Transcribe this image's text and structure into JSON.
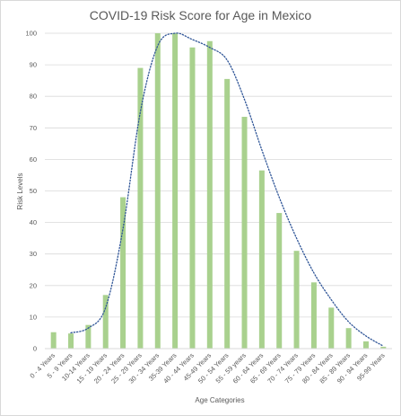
{
  "chart_data": {
    "type": "bar",
    "title": "COVID-19 Risk Score for Age in Mexico",
    "xlabel": "Age Categories",
    "ylabel": "Risk Levels",
    "ylim": [
      0,
      100
    ],
    "yticks": [
      0,
      10,
      20,
      30,
      40,
      50,
      60,
      70,
      80,
      90,
      100
    ],
    "grid": true,
    "legend": "none",
    "categories": [
      "0 - 4 Years",
      "5 - 9 Years",
      "10-14 Years",
      "15 - 19 Years",
      "20 - 24 Years",
      "25 - 29 Years",
      "30 - 34 Years",
      "35-39 Years",
      "40 - 44 Years",
      "45-49 Years",
      "50 - 54 Years",
      "55 - 59 years",
      "60 - 64 Years",
      "65 - 69 Years",
      "70 - 74 Years",
      "75 - 79 Years",
      "80 - 84 Years",
      "85 - 89 Years",
      "90 - 94 Years",
      "95-99 Years"
    ],
    "values": [
      5.2,
      4.8,
      7.5,
      17,
      48,
      89,
      100,
      100,
      95.5,
      97.5,
      85.5,
      73.5,
      56.5,
      43,
      31,
      21,
      13,
      6.5,
      2.3,
      0.6
    ],
    "trendline": {
      "style": "dotted",
      "values": [
        null,
        5,
        6.5,
        13,
        38,
        75,
        96,
        100,
        98,
        95.5,
        91.5,
        79,
        63,
        48,
        35,
        24,
        15.5,
        8.5,
        4,
        0.8
      ]
    },
    "colors": {
      "bar": "#a9d18e",
      "trendline": "#2f5597",
      "grid": "#d9d9d9",
      "text": "#595959"
    }
  }
}
